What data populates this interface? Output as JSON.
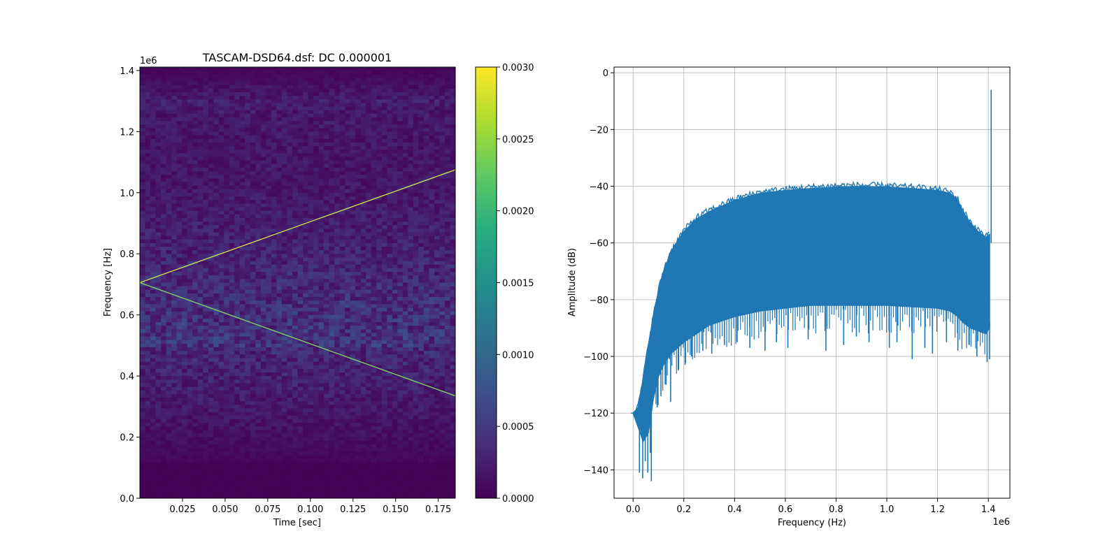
{
  "chart_data": [
    {
      "type": "heatmap",
      "title": "TASCAM-DSD64.dsf: DC 0.000001",
      "xlabel": "Time [sec]",
      "ylabel": "Frequency [Hz]",
      "xlim": [
        0.0,
        0.185
      ],
      "ylim": [
        0,
        1411200
      ],
      "x_ticks": [
        0.025,
        0.05,
        0.075,
        0.1,
        0.125,
        0.15,
        0.175
      ],
      "x_tick_labels": [
        "0.025",
        "0.050",
        "0.075",
        "0.100",
        "0.125",
        "0.150",
        "0.175"
      ],
      "y_ticks": [
        0,
        200000,
        400000,
        600000,
        800000,
        1000000,
        1200000,
        1400000
      ],
      "y_tick_labels": [
        "0.0",
        "0.2",
        "0.4",
        "0.6",
        "0.8",
        "1.0",
        "1.2",
        "1.4"
      ],
      "y_offset_label": "1e6",
      "colormap": "viridis",
      "colorbar": {
        "range": [
          0.0,
          0.003
        ],
        "ticks": [
          0.0,
          0.0005,
          0.001,
          0.0015,
          0.002,
          0.0025,
          0.003
        ],
        "tick_labels": [
          "0.0000",
          "0.0005",
          "0.0010",
          "0.0015",
          "0.0020",
          "0.0025",
          "0.0030"
        ]
      },
      "tones": [
        {
          "t": [
            0.0,
            0.185
          ],
          "f": [
            705600,
            1075000
          ]
        },
        {
          "t": [
            0.0,
            0.185
          ],
          "f": [
            705600,
            335000
          ]
        }
      ],
      "top_line_freq": 1411200
    },
    {
      "type": "line",
      "title": "",
      "xlabel": "Frequency (Hz)",
      "ylabel": "Amplitude (dB)",
      "xlim": [
        -75000,
        1485000
      ],
      "ylim": [
        -150,
        2
      ],
      "x_ticks": [
        0,
        200000,
        400000,
        600000,
        800000,
        1000000,
        1200000,
        1400000
      ],
      "x_tick_labels": [
        "0.0",
        "0.2",
        "0.4",
        "0.6",
        "0.8",
        "1.0",
        "1.2",
        "1.4"
      ],
      "x_offset_label": "1e6",
      "y_ticks": [
        0,
        -20,
        -40,
        -60,
        -80,
        -100,
        -120,
        -140
      ],
      "y_tick_labels": [
        "0",
        "−20",
        "−40",
        "−60",
        "−80",
        "−100",
        "−120",
        "−140"
      ],
      "grid": true,
      "color": "#1f77b4",
      "upper_envelope": {
        "x": [
          0,
          20000,
          40000,
          60000,
          80000,
          100000,
          120000,
          150000,
          200000,
          250000,
          300000,
          400000,
          500000,
          600000,
          700000,
          800000,
          900000,
          1000000,
          1100000,
          1200000,
          1250000,
          1280000,
          1300000,
          1330000,
          1360000,
          1390000,
          1405000
        ],
        "y": [
          -120,
          -118,
          -108,
          -96,
          -86,
          -77,
          -70,
          -63,
          -56,
          -51.5,
          -49,
          -45,
          -42.5,
          -41.5,
          -40.8,
          -40.3,
          -40.1,
          -40.3,
          -40.8,
          -41.5,
          -42.5,
          -45,
          -49,
          -53,
          -56,
          -58,
          -57
        ]
      },
      "lower_envelope": {
        "x": [
          0,
          20000,
          40000,
          60000,
          80000,
          100000,
          120000,
          150000,
          200000,
          250000,
          300000,
          400000,
          500000,
          600000,
          700000,
          800000,
          900000,
          1000000,
          1100000,
          1200000,
          1250000,
          1280000,
          1300000,
          1330000,
          1360000,
          1390000,
          1405000
        ],
        "y": [
          -120,
          -125,
          -130,
          -127,
          -115,
          -107,
          -103,
          -99,
          -95,
          -92,
          -89,
          -86,
          -84,
          -83,
          -82,
          -82,
          -82,
          -82,
          -82.5,
          -83,
          -84,
          -86,
          -88,
          -90,
          -91,
          -92,
          -90
        ]
      },
      "spike": {
        "x": 1411200,
        "y": -6,
        "base": -60
      },
      "deep_dips": [
        {
          "x": 25000,
          "y": -141
        },
        {
          "x": 38000,
          "y": -143
        },
        {
          "x": 48000,
          "y": -137
        },
        {
          "x": 58000,
          "y": -141
        },
        {
          "x": 68000,
          "y": -134
        },
        {
          "x": 72000,
          "y": -144
        },
        {
          "x": 95000,
          "y": -118
        },
        {
          "x": 110000,
          "y": -114
        },
        {
          "x": 130000,
          "y": -110
        },
        {
          "x": 148000,
          "y": -116
        },
        {
          "x": 178000,
          "y": -105
        },
        {
          "x": 205000,
          "y": -103
        },
        {
          "x": 230000,
          "y": -100
        },
        {
          "x": 275000,
          "y": -98
        },
        {
          "x": 310000,
          "y": -99
        },
        {
          "x": 360000,
          "y": -96
        },
        {
          "x": 410000,
          "y": -95
        },
        {
          "x": 460000,
          "y": -97
        },
        {
          "x": 520000,
          "y": -98
        },
        {
          "x": 565000,
          "y": -95
        },
        {
          "x": 610000,
          "y": -97
        },
        {
          "x": 690000,
          "y": -94
        },
        {
          "x": 760000,
          "y": -98
        },
        {
          "x": 830000,
          "y": -96
        },
        {
          "x": 880000,
          "y": -93
        },
        {
          "x": 930000,
          "y": -95
        },
        {
          "x": 1010000,
          "y": -97
        },
        {
          "x": 1040000,
          "y": -95
        },
        {
          "x": 1100000,
          "y": -101
        },
        {
          "x": 1150000,
          "y": -97
        },
        {
          "x": 1180000,
          "y": -99
        },
        {
          "x": 1235000,
          "y": -95
        },
        {
          "x": 1280000,
          "y": -98
        },
        {
          "x": 1325000,
          "y": -96
        },
        {
          "x": 1355000,
          "y": -100
        },
        {
          "x": 1395000,
          "y": -102
        },
        {
          "x": 1405000,
          "y": -101
        }
      ]
    }
  ]
}
